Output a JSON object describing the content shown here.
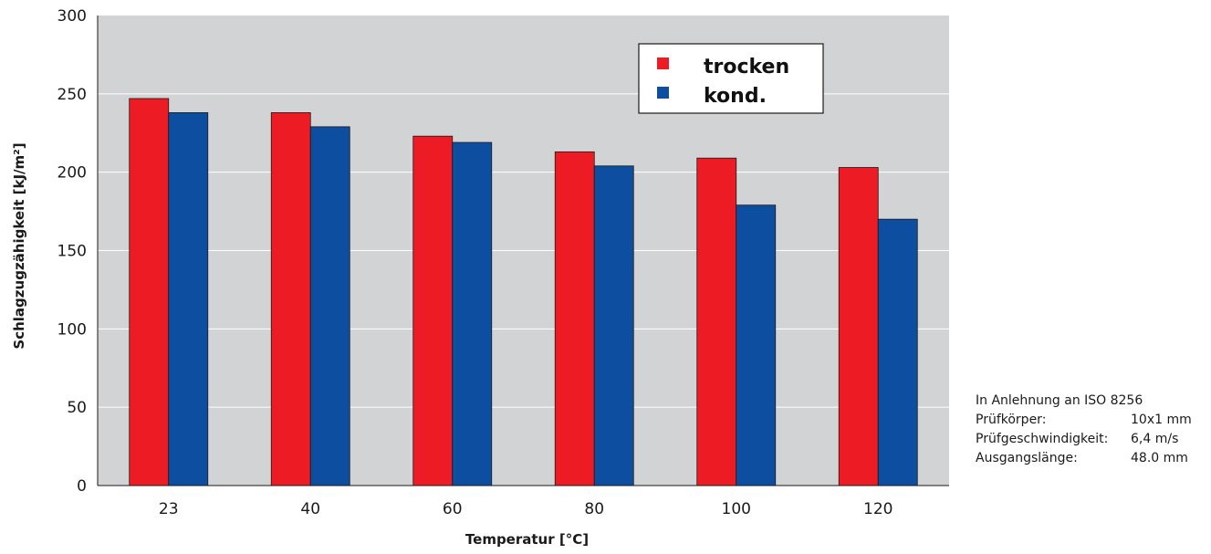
{
  "chart_data": {
    "type": "bar",
    "categories": [
      "23",
      "40",
      "60",
      "80",
      "100",
      "120"
    ],
    "series": [
      {
        "name": "trocken",
        "color": "#ed1c24",
        "values": [
          247,
          238,
          223,
          213,
          209,
          203
        ]
      },
      {
        "name": "kond.",
        "color": "#0d4ea1",
        "values": [
          238,
          229,
          219,
          204,
          179,
          170
        ]
      }
    ],
    "xlabel": "Temperatur [°C]",
    "ylabel": "Schlagzugzähigkeit [kJ/m²]",
    "ylim": [
      0,
      300
    ],
    "yticks": [
      "0",
      "50",
      "100",
      "150",
      "200",
      "250",
      "300"
    ],
    "grid": true,
    "plot_background": "#d1d3d4",
    "legend_position": "top-right"
  },
  "notes": {
    "title": "In Anlehnung an ISO 8256",
    "rows": [
      {
        "label": "Prüfkörper:",
        "value": "10x1 mm"
      },
      {
        "label": "Prüfgeschwindigkeit:",
        "value": "6,4 m/s"
      },
      {
        "label": "Ausgangslänge:",
        "value": "48.0 mm"
      }
    ]
  }
}
